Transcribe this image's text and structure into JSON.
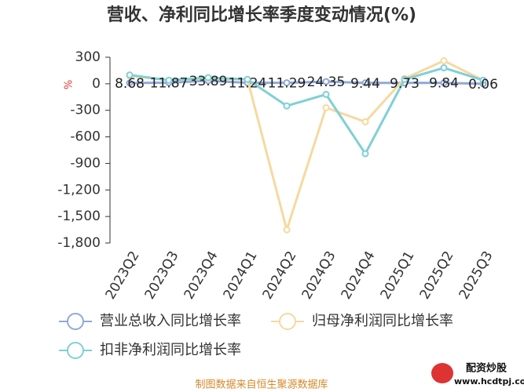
{
  "chart_data": {
    "type": "line",
    "title": "营收、净利同比增长率季度变动情况(%)",
    "ylabel": "%",
    "categories": [
      "2023Q2",
      "2023Q3",
      "2023Q4",
      "2024Q1",
      "2024Q2",
      "2024Q3",
      "2024Q4",
      "2025Q1",
      "2025Q2",
      "2025Q3"
    ],
    "series": [
      {
        "name": "营业总收入同比增长率",
        "color": "#8fa9d8",
        "values": [
          8.68,
          11.87,
          33.89,
          11.24,
          11.29,
          24.35,
          9.44,
          9.73,
          9.84,
          0.06
        ],
        "show_labels": true
      },
      {
        "name": "归母净利润同比增长率",
        "color": "#f6d9a0",
        "values": [
          90,
          40,
          60,
          50,
          -1650,
          -270,
          -430,
          60,
          260,
          40
        ]
      },
      {
        "name": "扣非净利润同比增长率",
        "color": "#80d0d4",
        "values": [
          100,
          40,
          70,
          50,
          -250,
          -120,
          -790,
          50,
          180,
          40
        ]
      }
    ],
    "ylim": [
      300,
      -1800
    ],
    "yticks": [
      300,
      0,
      {
        "value": -300,
        "label": "-300"
      },
      {
        "value": -600,
        "label": "-600"
      },
      {
        "value": -900,
        "label": "-900"
      },
      {
        "value": -1200,
        "label": "-1,200"
      },
      {
        "value": -1500,
        "label": "-1,500"
      },
      {
        "value": -1800,
        "label": "-1,800"
      }
    ],
    "source": "制图数据来自恒生聚源数据库",
    "watermark": "配资炒股",
    "watermark_url": "www.hcdtpj.com"
  }
}
